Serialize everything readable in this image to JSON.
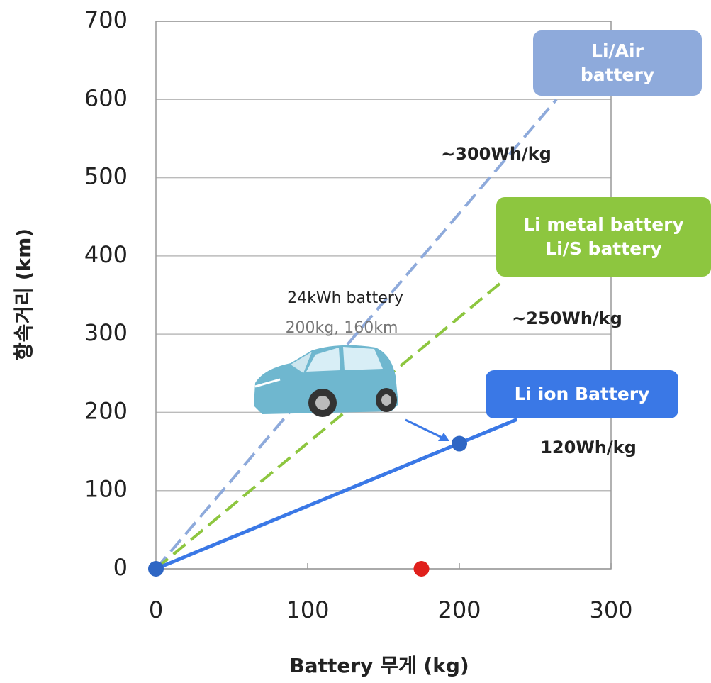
{
  "chart_data": {
    "type": "line",
    "x_label": "Battery 무게 (kg)",
    "y_label": "항속거리 (km)",
    "xlim": [
      0,
      300
    ],
    "ylim": [
      0,
      700
    ],
    "xticks": [
      0,
      100,
      200,
      300
    ],
    "yticks": [
      0,
      100,
      200,
      300,
      400,
      500,
      600,
      700
    ],
    "grid": true,
    "series": [
      {
        "name": "Li/Air\nbattery",
        "rate": "~300Wh/kg",
        "color": "#8eaadb",
        "style": "dashed",
        "x": [
          0,
          264
        ],
        "values": [
          0,
          600
        ]
      },
      {
        "name": "Li metal battery\nLi/S battery",
        "rate": "~250Wh/kg",
        "color": "#8dc63f",
        "style": "dashed",
        "x": [
          0,
          230
        ],
        "values": [
          0,
          370
        ]
      },
      {
        "name": "Li ion Battery",
        "rate": "120Wh/kg",
        "color": "#3a78e6",
        "style": "solid",
        "x": [
          0,
          238
        ],
        "values": [
          0,
          191
        ]
      }
    ],
    "points": {
      "x": [
        0,
        200,
        175
      ],
      "values": [
        0,
        160,
        0
      ],
      "colors": [
        "#2e66c4",
        "#2e66c4",
        "#e0201c"
      ]
    },
    "annotations": [
      "24kWh battery",
      "200kg, 160km"
    ]
  }
}
